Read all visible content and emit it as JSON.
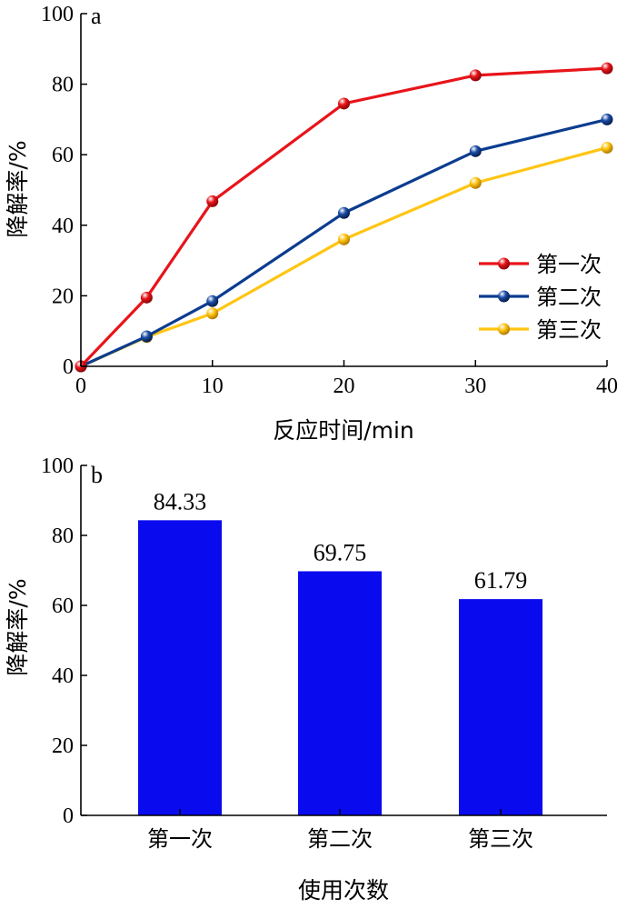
{
  "chart_data": [
    {
      "type": "line",
      "panel_label": "a",
      "xlabel": "反应时间/min",
      "ylabel": "降解率/%",
      "xlim": [
        0,
        40
      ],
      "ylim": [
        0,
        100
      ],
      "xticks": [
        0,
        10,
        20,
        30,
        40
      ],
      "yticks": [
        0,
        20,
        40,
        60,
        80,
        100
      ],
      "x": [
        0,
        5,
        10,
        20,
        30,
        40
      ],
      "legend_position": "bottom-right",
      "grid": false,
      "series": [
        {
          "name": "第一次",
          "color": "#e8141a",
          "values": [
            0,
            19.5,
            46.8,
            74.5,
            82.5,
            84.5
          ]
        },
        {
          "name": "第二次",
          "color": "#0b3c8f",
          "values": [
            0,
            8.5,
            18.5,
            43.5,
            61,
            70
          ]
        },
        {
          "name": "第三次",
          "color": "#ffc512",
          "values": [
            0,
            8.3,
            15,
            36,
            52,
            62
          ]
        }
      ]
    },
    {
      "type": "bar",
      "panel_label": "b",
      "xlabel": "使用次数",
      "ylabel": "降解率/%",
      "ylim": [
        0,
        100
      ],
      "yticks": [
        0,
        20,
        40,
        60,
        80,
        100
      ],
      "grid": false,
      "bar_color": "#0a0aef",
      "categories": [
        "第一次",
        "第二次",
        "第三次"
      ],
      "values": [
        84.33,
        69.75,
        61.79
      ],
      "value_labels": [
        "84.33",
        "69.75",
        "61.79"
      ]
    }
  ]
}
